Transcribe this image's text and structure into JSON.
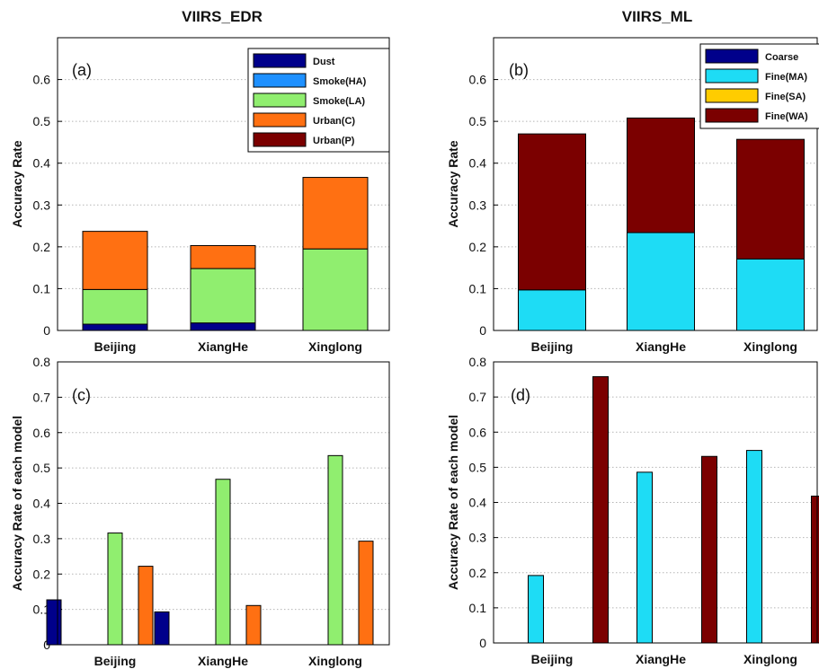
{
  "chart_data": [
    {
      "id": "a",
      "type": "bar",
      "stacked": true,
      "title": "VIIRS_EDR",
      "panel_label": "(a)",
      "ylabel": "Accuracy Rate",
      "xlabel": "",
      "ylim": [
        0,
        0.7
      ],
      "yticks": [
        0,
        0.1,
        0.2,
        0.3,
        0.4,
        0.5,
        0.6
      ],
      "grid": true,
      "categories": [
        "Beijing",
        "XiangHe",
        "Xinglong"
      ],
      "legend_position": "top-right",
      "series": [
        {
          "name": "Dust",
          "color": "#00008b",
          "values": [
            0.015,
            0.018,
            0
          ]
        },
        {
          "name": "Smoke(HA)",
          "color": "#1e90ff",
          "values": [
            0,
            0,
            0
          ]
        },
        {
          "name": "Smoke(LA)",
          "color": "#90ee6f",
          "values": [
            0.083,
            0.13,
            0.195
          ]
        },
        {
          "name": "Urban(C)",
          "color": "#ff7012",
          "values": [
            0.139,
            0.055,
            0.171
          ]
        },
        {
          "name": "Urban(P)",
          "color": "#7b0000",
          "values": [
            0,
            0,
            0
          ]
        }
      ]
    },
    {
      "id": "b",
      "type": "bar",
      "stacked": true,
      "title": "VIIRS_ML",
      "panel_label": "(b)",
      "ylabel": "Accuracy Rate",
      "xlabel": "",
      "ylim": [
        0,
        0.7
      ],
      "yticks": [
        0,
        0.1,
        0.2,
        0.3,
        0.4,
        0.5,
        0.6
      ],
      "grid": true,
      "categories": [
        "Beijing",
        "XiangHe",
        "Xinglong"
      ],
      "legend_position": "top-right",
      "series": [
        {
          "name": "Coarse",
          "color": "#00008b",
          "values": [
            0,
            0,
            0
          ]
        },
        {
          "name": "Fine(MA)",
          "color": "#1edcf5",
          "values": [
            0.097,
            0.234,
            0.171
          ]
        },
        {
          "name": "Fine(SA)",
          "color": "#ffcc00",
          "values": [
            0,
            0,
            0
          ]
        },
        {
          "name": "Fine(WA)",
          "color": "#7b0000",
          "values": [
            0.373,
            0.274,
            0.286
          ]
        }
      ]
    },
    {
      "id": "c",
      "type": "bar",
      "stacked": false,
      "title": "",
      "panel_label": "(c)",
      "ylabel": "Accuracy Rate of each model",
      "xlabel": "",
      "ylim": [
        0,
        0.8
      ],
      "yticks": [
        0,
        0.1,
        0.2,
        0.3,
        0.4,
        0.5,
        0.6,
        0.7,
        0.8
      ],
      "grid": true,
      "categories": [
        "Beijing",
        "XiangHe",
        "Xinglong"
      ],
      "series": [
        {
          "color": "#00008b",
          "values": [
            0.127,
            0.093,
            0
          ]
        },
        {
          "color": "#1e90ff",
          "values": [
            0,
            0,
            0
          ]
        },
        {
          "color": "#90ee6f",
          "values": [
            0.316,
            0.468,
            0.535
          ]
        },
        {
          "color": "#ff7012",
          "values": [
            0.222,
            0.111,
            0.293
          ]
        },
        {
          "color": "#7b0000",
          "values": [
            0,
            0,
            0
          ]
        }
      ]
    },
    {
      "id": "d",
      "type": "bar",
      "stacked": false,
      "title": "",
      "panel_label": "(d)",
      "ylabel": "Accuracy Rate of each model",
      "xlabel": "",
      "ylim": [
        0,
        0.8
      ],
      "yticks": [
        0,
        0.1,
        0.2,
        0.3,
        0.4,
        0.5,
        0.6,
        0.7,
        0.8
      ],
      "grid": true,
      "categories": [
        "Beijing",
        "XiangHe",
        "Xinglong"
      ],
      "series": [
        {
          "color": "#00008b",
          "values": [
            0,
            0,
            0
          ]
        },
        {
          "color": "#1edcf5",
          "values": [
            0.192,
            0.486,
            0.548
          ]
        },
        {
          "color": "#ffcc00",
          "values": [
            0,
            0,
            0
          ]
        },
        {
          "color": "#7b0000",
          "values": [
            0.758,
            0.531,
            0.418
          ]
        }
      ]
    }
  ]
}
